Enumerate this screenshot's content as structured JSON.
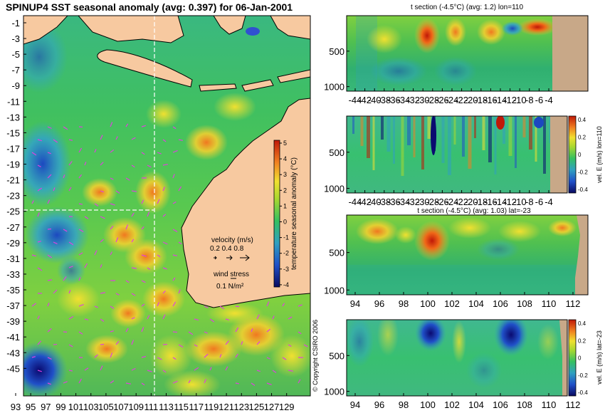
{
  "main_title": "SPINUP4 SST seasonal anomaly (avg: 0.397) for 06-Jan-2001",
  "map": {
    "lat_labels": [
      "-1",
      "-3",
      "-5",
      "-7",
      "-9",
      "-11",
      "-13",
      "-15",
      "-17",
      "-19",
      "-21",
      "-23",
      "-25",
      "-27",
      "-29",
      "-31",
      "-33",
      "-35",
      "-37",
      "-39",
      "-41",
      "-43",
      "-45"
    ],
    "lon_labels": [
      "93",
      "95",
      "97",
      "99",
      "101",
      "103",
      "105",
      "107",
      "109",
      "111",
      "113",
      "115",
      "117",
      "119",
      "121",
      "123",
      "125",
      "127",
      "129"
    ],
    "section_lon": 110,
    "section_lat": -23,
    "colorbar_label": "temperature seasonal anomaly (°C)",
    "colorbar_ticks": [
      "5",
      "4",
      "3",
      "2",
      "1",
      "0",
      "-1",
      "-2",
      "-3",
      "-4"
    ],
    "legend": {
      "velocity_title": "velocity (m/s)",
      "velocity_values": "0.2 0.4 0.8",
      "wind_title": "wind stress",
      "wind_value": "0.1 N/m²"
    }
  },
  "panels": {
    "p1": {
      "title": "t section (-4.5°C) (avg: 1.2) lon=110",
      "y_ticks": [
        "500",
        "1000"
      ],
      "x_ticks": [
        "-44",
        "-42",
        "-40",
        "-38",
        "-36",
        "-34",
        "-32",
        "-30",
        "-28",
        "-26",
        "-24",
        "-22",
        "-20",
        "-18",
        "-16",
        "-14",
        "-12",
        "-10",
        "-8",
        "-6",
        "-4"
      ]
    },
    "p2": {
      "title": "",
      "y_ticks": [
        "500",
        "1000"
      ],
      "x_ticks": [
        "-44",
        "-42",
        "-40",
        "-38",
        "-36",
        "-34",
        "-32",
        "-30",
        "-28",
        "-26",
        "-24",
        "-22",
        "-20",
        "-18",
        "-16",
        "-14",
        "-12",
        "-10",
        "-8",
        "-6",
        "-4"
      ],
      "cbar_label": "vel. E (m/s) lon=110",
      "cbar_ticks": [
        "0.4",
        "0.2",
        "0",
        "-0.2",
        "-0.4"
      ]
    },
    "p3": {
      "title": "t section (-4.5°C) (avg: 1.03) lat=-23",
      "y_ticks": [
        "500",
        "1000"
      ],
      "x_ticks": [
        "94",
        "96",
        "98",
        "100",
        "102",
        "104",
        "106",
        "108",
        "110",
        "112"
      ]
    },
    "p4": {
      "title": "",
      "y_ticks": [
        "500",
        "1000"
      ],
      "x_ticks": [
        "94",
        "96",
        "98",
        "100",
        "102",
        "104",
        "106",
        "108",
        "110",
        "112"
      ],
      "cbar_label": "vel. E (m/s) lat=-23",
      "cbar_ticks": [
        "0.4",
        "0.2",
        "0",
        "-0.2",
        "-0.4"
      ]
    }
  },
  "copyright": "© Copyright CSIRO 2006",
  "colors": {
    "land": "#f7c9a0",
    "seabed": "#c8a888",
    "ocean_green": "#35c060",
    "anomaly_warm": "#e04010",
    "anomaly_cold": "#2050c8",
    "vector_magenta": "#e040e0"
  }
}
